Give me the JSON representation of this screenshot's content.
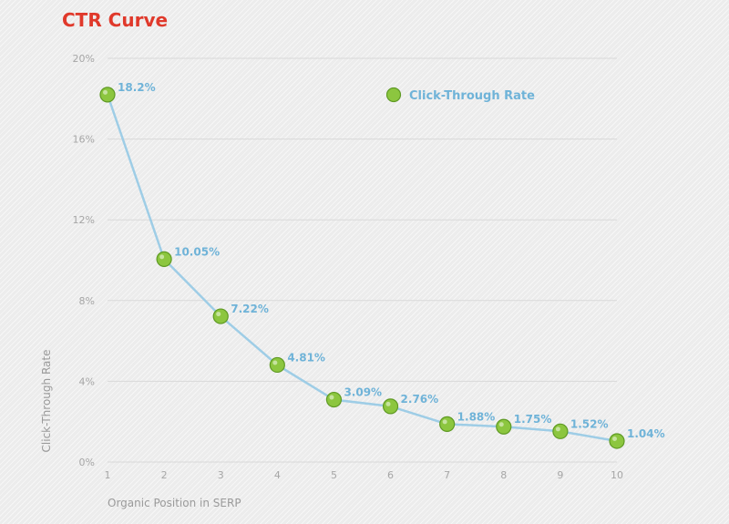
{
  "chart_data": {
    "type": "line",
    "title": "CTR Curve",
    "xlabel": "Organic Position in SERP",
    "ylabel": "Click-Through Rate",
    "x": [
      1,
      2,
      3,
      4,
      5,
      6,
      7,
      8,
      9,
      10
    ],
    "series": [
      {
        "name": "Click-Through Rate",
        "values": [
          18.2,
          10.05,
          7.22,
          4.81,
          3.09,
          2.76,
          1.88,
          1.75,
          1.52,
          1.04
        ],
        "labels": [
          "18.2%",
          "10.05%",
          "7.22%",
          "4.81%",
          "3.09%",
          "2.76%",
          "1.88%",
          "1.75%",
          "1.52%",
          "1.04%"
        ]
      }
    ],
    "x_ticks": [
      "1",
      "2",
      "3",
      "4",
      "5",
      "6",
      "7",
      "8",
      "9",
      "10"
    ],
    "y_ticks": [
      0,
      4,
      8,
      12,
      16,
      20
    ],
    "y_tick_labels": [
      "0%",
      "4%",
      "8%",
      "12%",
      "16%",
      "20%"
    ],
    "ylim": [
      0,
      20
    ],
    "xlim": [
      1,
      10
    ],
    "grid": true,
    "legend": "top-right"
  },
  "colors": {
    "title": "#e0392b",
    "line": "#9ecde6",
    "marker_fill": "#8cc63f",
    "marker_edge": "#5f9a24",
    "data_label": "#6fb3d8",
    "grid": "#d9d9d9"
  }
}
